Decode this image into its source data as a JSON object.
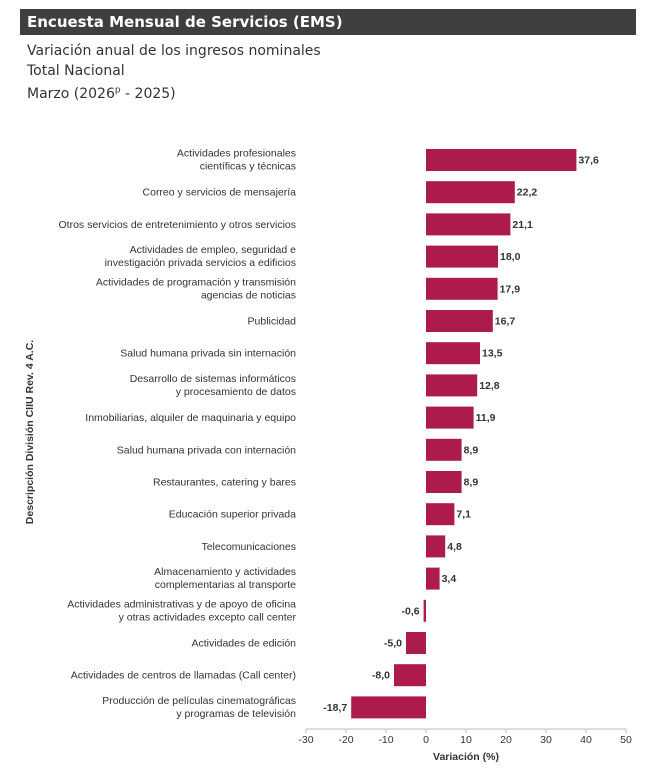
{
  "header": {
    "banner_title": "Encuesta Mensual de Servicios (EMS)",
    "subtitle_1": "Variación anual de los ingresos nominales",
    "subtitle_2": "Total Nacional",
    "subtitle_3_prefix": "Marzo (2026",
    "subtitle_3_sup": "p",
    "subtitle_3_suffix": " - 2025)"
  },
  "colors": {
    "bar": "#AD1A4C",
    "banner": "#3F3F3F",
    "axis": "#BBBBBB"
  },
  "chart_data": {
    "type": "bar",
    "orientation": "horizontal",
    "xlabel": "Variación (%)",
    "ylabel": "Descripción División CIIU Rev. 4 A.C.",
    "xlim": [
      -30,
      50
    ],
    "xticks": [
      -30,
      -20,
      -10,
      0,
      10,
      20,
      30,
      40,
      50
    ],
    "grid": false,
    "categories": [
      [
        "Actividades profesionales",
        "científicas y técnicas"
      ],
      [
        "Correo y servicios de mensajería"
      ],
      [
        "Otros servicios de entretenimiento y otros servicios"
      ],
      [
        "Actividades de empleo, seguridad e",
        "investigación privada servicios a edificios"
      ],
      [
        "Actividades de programación y transmisión",
        "agencias de noticias"
      ],
      [
        "Publicidad"
      ],
      [
        "Salud humana privada sin internación"
      ],
      [
        "Desarrollo de sistemas informáticos",
        "y procesamiento de datos"
      ],
      [
        "Inmobiliarias, alquiler de maquinaria y equipo"
      ],
      [
        "Salud humana privada con internación"
      ],
      [
        "Restaurantes, catering y bares"
      ],
      [
        "Educación superior privada"
      ],
      [
        "Telecomunicaciones"
      ],
      [
        "Almacenamiento y actividades",
        "complementarias al transporte"
      ],
      [
        "Actividades administrativas y de apoyo de oficina",
        "y otras actividades excepto call center"
      ],
      [
        "Actividades de edición"
      ],
      [
        "Actividades de centros de llamadas (Call center)"
      ],
      [
        "Producción de películas cinematográficas",
        "y programas de televisión"
      ]
    ],
    "values": [
      37.6,
      22.2,
      21.1,
      18.0,
      17.9,
      16.7,
      13.5,
      12.8,
      11.9,
      8.9,
      8.9,
      7.1,
      4.8,
      3.4,
      -0.6,
      -5.0,
      -8.0,
      -18.7
    ],
    "value_labels": [
      "37,6",
      "22,2",
      "21,1",
      "18,0",
      "17,9",
      "16,7",
      "13,5",
      "12,8",
      "11,9",
      "8,9",
      "8,9",
      "7,1",
      "4,8",
      "3,4",
      "-0,6",
      "-5,0",
      "-8,0",
      "-18,7"
    ]
  }
}
